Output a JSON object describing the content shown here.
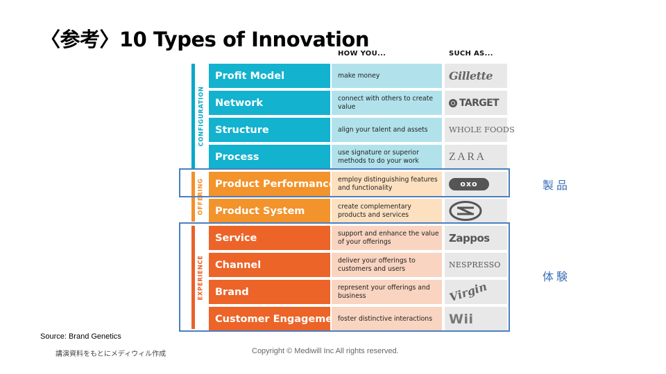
{
  "title": "〈参考〉10 Types of Innovation",
  "headers": {
    "how": "HOW YOU...",
    "such": "SUCH AS..."
  },
  "groups": [
    {
      "label": "CONFIGURATION",
      "color": "#0aa8c8"
    },
    {
      "label": "OFFERING",
      "color": "#f2902a"
    },
    {
      "label": "EXPERIENCE",
      "color": "#e8622a"
    }
  ],
  "rows": [
    {
      "name": "Profit Model",
      "how": "make money",
      "example": "Gillette",
      "name_color": "#13b2cf",
      "how_color": "#b1e2ec"
    },
    {
      "name": "Network",
      "how": "connect with others to create value",
      "example": "TARGET",
      "name_color": "#13b2cf",
      "how_color": "#b1e2ec"
    },
    {
      "name": "Structure",
      "how": "align your talent and assets",
      "example": "WHOLE FOODS",
      "name_color": "#13b2cf",
      "how_color": "#b1e2ec"
    },
    {
      "name": "Process",
      "how": "use signature or superior methods to do your work",
      "example": "ZARA",
      "name_color": "#13b2cf",
      "how_color": "#b1e2ec"
    },
    {
      "name": "Product Performance",
      "how": "employ distinguishing features and functionality",
      "example": "oxo",
      "name_color": "#f3932b",
      "how_color": "#fde0bf"
    },
    {
      "name": "Product System",
      "how": "create complementary products and services",
      "example": "scion",
      "name_color": "#f3932b",
      "how_color": "#fde0bf"
    },
    {
      "name": "Service",
      "how": "support and enhance the value of your offerings",
      "example": "Zappos",
      "name_color": "#ec6428",
      "how_color": "#f9d4c0"
    },
    {
      "name": "Channel",
      "how": "deliver your offerings to customers and users",
      "example": "NESPRESSO",
      "name_color": "#ec6428",
      "how_color": "#f9d4c0"
    },
    {
      "name": "Brand",
      "how": "represent your offerings and business",
      "example": "Virgin",
      "name_color": "#ec6428",
      "how_color": "#f9d4c0"
    },
    {
      "name": "Customer Engagement",
      "how": "foster distinctive interactions",
      "example": "Wii",
      "name_color": "#ec6428",
      "how_color": "#f9d4c0"
    }
  ],
  "highlights": {
    "product": "製品",
    "experience": "体験",
    "color": "#4a7ec1"
  },
  "source": "Source: Brand Genetics",
  "note": "講演資料をもとにメディウィル作成",
  "copyright": "Copyright © Mediwill Inc All rights reserved.",
  "colors": {
    "such_bg": "#e8e8e8"
  }
}
